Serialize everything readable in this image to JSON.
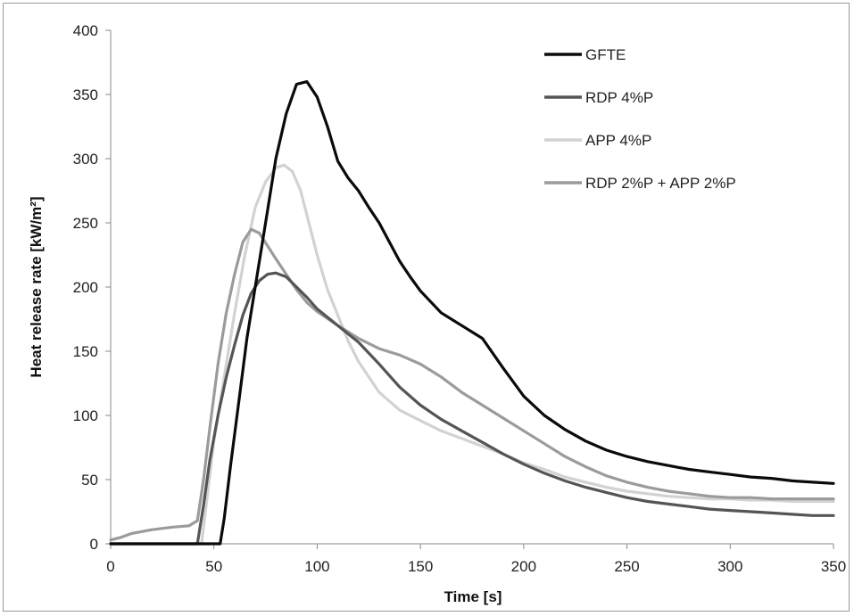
{
  "chart_data": {
    "type": "line",
    "title": "",
    "xlabel": "Time [s]",
    "ylabel": "Heat release rate [kW/m²]",
    "xlim": [
      0,
      350
    ],
    "ylim": [
      0,
      400
    ],
    "xticks": [
      0,
      50,
      100,
      150,
      200,
      250,
      300,
      350
    ],
    "yticks": [
      0,
      50,
      100,
      150,
      200,
      250,
      300,
      350,
      400
    ],
    "grid": false,
    "legend_position": "top-right",
    "series": [
      {
        "name": "GFTE",
        "color": "#0a0a0a",
        "points": [
          [
            0,
            0
          ],
          [
            50,
            0
          ],
          [
            53,
            0
          ],
          [
            55,
            20
          ],
          [
            58,
            60
          ],
          [
            62,
            110
          ],
          [
            66,
            160
          ],
          [
            70,
            200
          ],
          [
            75,
            250
          ],
          [
            80,
            300
          ],
          [
            85,
            335
          ],
          [
            90,
            358
          ],
          [
            95,
            360
          ],
          [
            100,
            348
          ],
          [
            105,
            325
          ],
          [
            110,
            298
          ],
          [
            115,
            285
          ],
          [
            120,
            275
          ],
          [
            125,
            262
          ],
          [
            130,
            250
          ],
          [
            135,
            235
          ],
          [
            140,
            220
          ],
          [
            145,
            208
          ],
          [
            150,
            197
          ],
          [
            160,
            180
          ],
          [
            170,
            170
          ],
          [
            180,
            160
          ],
          [
            190,
            137
          ],
          [
            200,
            115
          ],
          [
            210,
            100
          ],
          [
            220,
            89
          ],
          [
            230,
            80
          ],
          [
            240,
            73
          ],
          [
            250,
            68
          ],
          [
            260,
            64
          ],
          [
            270,
            61
          ],
          [
            280,
            58
          ],
          [
            290,
            56
          ],
          [
            300,
            54
          ],
          [
            310,
            52
          ],
          [
            320,
            51
          ],
          [
            330,
            49
          ],
          [
            340,
            48
          ],
          [
            350,
            47
          ]
        ]
      },
      {
        "name": "RDP 4%P",
        "color": "#555555",
        "points": [
          [
            0,
            0
          ],
          [
            40,
            0
          ],
          [
            42,
            0
          ],
          [
            45,
            30
          ],
          [
            48,
            65
          ],
          [
            52,
            100
          ],
          [
            56,
            130
          ],
          [
            60,
            155
          ],
          [
            64,
            178
          ],
          [
            68,
            195
          ],
          [
            72,
            205
          ],
          [
            76,
            210
          ],
          [
            80,
            211
          ],
          [
            85,
            208
          ],
          [
            90,
            200
          ],
          [
            95,
            192
          ],
          [
            100,
            183
          ],
          [
            110,
            170
          ],
          [
            120,
            157
          ],
          [
            130,
            140
          ],
          [
            140,
            122
          ],
          [
            150,
            108
          ],
          [
            160,
            97
          ],
          [
            170,
            88
          ],
          [
            180,
            79
          ],
          [
            190,
            70
          ],
          [
            200,
            62
          ],
          [
            210,
            55
          ],
          [
            220,
            49
          ],
          [
            230,
            44
          ],
          [
            240,
            40
          ],
          [
            250,
            36
          ],
          [
            260,
            33
          ],
          [
            270,
            31
          ],
          [
            280,
            29
          ],
          [
            290,
            27
          ],
          [
            300,
            26
          ],
          [
            310,
            25
          ],
          [
            320,
            24
          ],
          [
            330,
            23
          ],
          [
            340,
            22
          ],
          [
            350,
            22
          ]
        ]
      },
      {
        "name": "APP 4%P",
        "color": "#d2d2d2",
        "points": [
          [
            0,
            0
          ],
          [
            40,
            0
          ],
          [
            44,
            0
          ],
          [
            47,
            40
          ],
          [
            50,
            80
          ],
          [
            55,
            130
          ],
          [
            60,
            180
          ],
          [
            65,
            225
          ],
          [
            70,
            262
          ],
          [
            75,
            282
          ],
          [
            80,
            293
          ],
          [
            84,
            295
          ],
          [
            88,
            290
          ],
          [
            92,
            275
          ],
          [
            96,
            250
          ],
          [
            100,
            225
          ],
          [
            105,
            198
          ],
          [
            110,
            178
          ],
          [
            115,
            158
          ],
          [
            120,
            142
          ],
          [
            130,
            118
          ],
          [
            140,
            104
          ],
          [
            150,
            96
          ],
          [
            160,
            88
          ],
          [
            170,
            82
          ],
          [
            180,
            76
          ],
          [
            190,
            70
          ],
          [
            200,
            63
          ],
          [
            210,
            58
          ],
          [
            220,
            52
          ],
          [
            230,
            48
          ],
          [
            240,
            44
          ],
          [
            250,
            41
          ],
          [
            260,
            39
          ],
          [
            270,
            37
          ],
          [
            280,
            36
          ],
          [
            290,
            35
          ],
          [
            300,
            35
          ],
          [
            310,
            34
          ],
          [
            320,
            34
          ],
          [
            330,
            33
          ],
          [
            340,
            33
          ],
          [
            350,
            33
          ]
        ]
      },
      {
        "name": "RDP 2%P + APP 2%P",
        "color": "#9b9b9b",
        "points": [
          [
            0,
            3
          ],
          [
            5,
            5
          ],
          [
            10,
            8
          ],
          [
            20,
            11
          ],
          [
            30,
            13
          ],
          [
            38,
            14
          ],
          [
            42,
            18
          ],
          [
            45,
            50
          ],
          [
            48,
            90
          ],
          [
            52,
            140
          ],
          [
            56,
            180
          ],
          [
            60,
            210
          ],
          [
            64,
            235
          ],
          [
            68,
            245
          ],
          [
            72,
            242
          ],
          [
            76,
            232
          ],
          [
            80,
            222
          ],
          [
            85,
            210
          ],
          [
            90,
            198
          ],
          [
            95,
            188
          ],
          [
            100,
            181
          ],
          [
            110,
            170
          ],
          [
            120,
            160
          ],
          [
            130,
            152
          ],
          [
            140,
            147
          ],
          [
            150,
            140
          ],
          [
            160,
            130
          ],
          [
            170,
            118
          ],
          [
            180,
            108
          ],
          [
            190,
            98
          ],
          [
            200,
            88
          ],
          [
            210,
            78
          ],
          [
            220,
            68
          ],
          [
            230,
            60
          ],
          [
            240,
            53
          ],
          [
            250,
            48
          ],
          [
            260,
            44
          ],
          [
            270,
            41
          ],
          [
            280,
            39
          ],
          [
            290,
            37
          ],
          [
            300,
            36
          ],
          [
            310,
            36
          ],
          [
            320,
            35
          ],
          [
            330,
            35
          ],
          [
            340,
            35
          ],
          [
            350,
            35
          ]
        ]
      }
    ]
  }
}
